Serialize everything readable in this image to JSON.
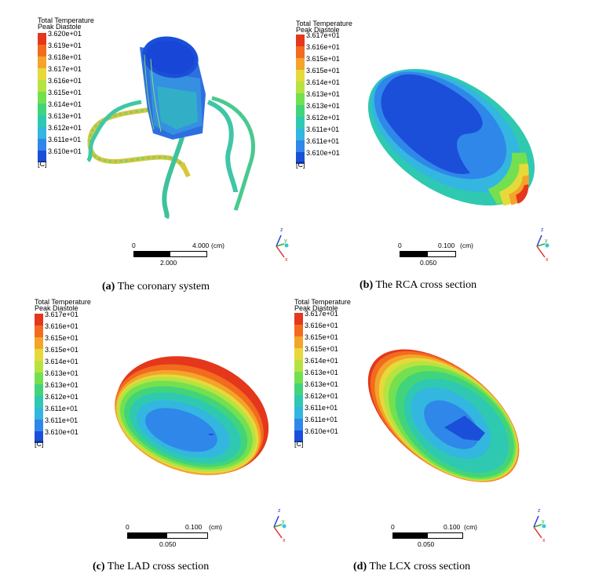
{
  "panels": [
    {
      "id": "a",
      "legend": {
        "title1": "Total Temperature",
        "title2": "Peak Diastole",
        "labels": [
          "3.620e+01",
          "3.619e+01",
          "3.618e+01",
          "3.617e+01",
          "3.616e+01",
          "3.615e+01",
          "3.614e+01",
          "3.613e+01",
          "3.612e+01",
          "3.611e+01",
          "3.610e+01"
        ],
        "unit": "[C]"
      },
      "scale": {
        "zero": "0",
        "right": "4.000",
        "unit": "(cm)",
        "mid": "2.000"
      },
      "caption": {
        "letter": "(a)",
        "text": "The coronary system"
      }
    },
    {
      "id": "b",
      "legend": {
        "title1": "Total Temperature",
        "title2": "Peak Diastole",
        "labels": [
          "3.617e+01",
          "3.616e+01",
          "3.615e+01",
          "3.615e+01",
          "3.614e+01",
          "3.613e+01",
          "3.613e+01",
          "3.612e+01",
          "3.611e+01",
          "3.611e+01",
          "3.610e+01"
        ],
        "unit": "[C]"
      },
      "scale": {
        "zero": "0",
        "right": "0.100",
        "unit": "(cm)",
        "mid": "0.050"
      },
      "caption": {
        "letter": "(b)",
        "text": "The RCA cross section"
      }
    },
    {
      "id": "c",
      "legend": {
        "title1": "Total Temperature",
        "title2": "Peak Diastole",
        "labels": [
          "3.617e+01",
          "3.616e+01",
          "3.615e+01",
          "3.615e+01",
          "3.614e+01",
          "3.613e+01",
          "3.613e+01",
          "3.612e+01",
          "3.611e+01",
          "3.611e+01",
          "3.610e+01"
        ],
        "unit": "[C]"
      },
      "scale": {
        "zero": "0",
        "right": "0.100",
        "unit": "(cm)",
        "mid": "0.050"
      },
      "caption": {
        "letter": "(c)",
        "text": "The LAD cross section"
      }
    },
    {
      "id": "d",
      "legend": {
        "title1": "Total Temperature",
        "title2": "Peak Diastole",
        "labels": [
          "3.617e+01",
          "3.616e+01",
          "3.615e+01",
          "3.615e+01",
          "3.614e+01",
          "3.613e+01",
          "3.613e+01",
          "3.612e+01",
          "3.611e+01",
          "3.611e+01",
          "3.610e+01"
        ],
        "unit": "[C]"
      },
      "scale": {
        "zero": "0",
        "right": "0.100",
        "unit": "(cm)",
        "mid": "0.050"
      },
      "caption": {
        "letter": "(d)",
        "text": "The LCX cross section"
      }
    }
  ],
  "axes": {
    "z": "z",
    "y": "y",
    "x": "x"
  },
  "colormap": [
    "#e4371c",
    "#f26b1e",
    "#f4a42a",
    "#e6d93a",
    "#b7e342",
    "#74e04f",
    "#42d47a",
    "#2fc9b1",
    "#33b6e0",
    "#2f87ea",
    "#1b4fd9"
  ]
}
